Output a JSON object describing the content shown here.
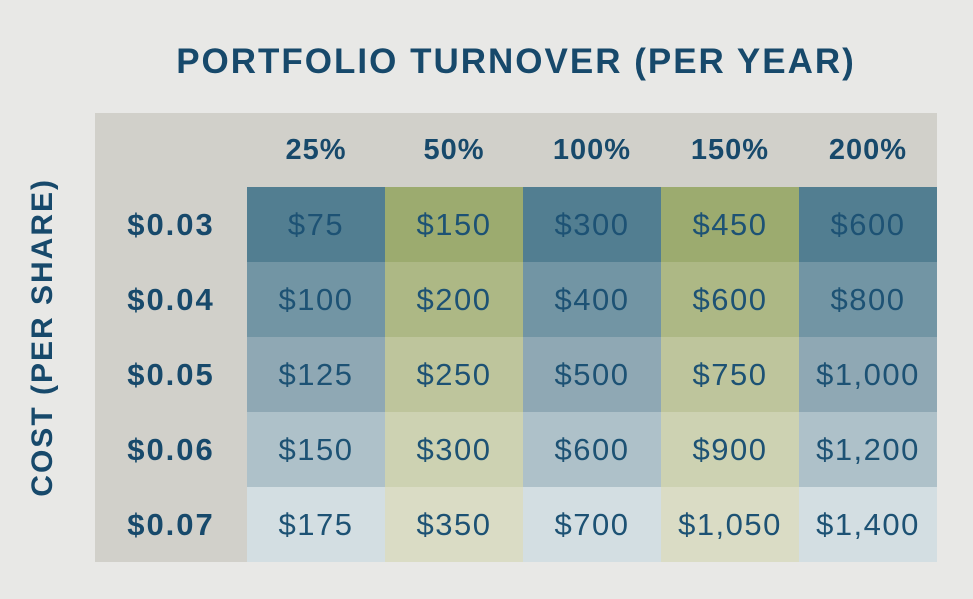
{
  "title": "PORTFOLIO TURNOVER (PER YEAR)",
  "colors": {
    "background": "#e8e8e6",
    "panel": "#d1d0ca",
    "heading_text": "#17496b",
    "cell_text": "#1d5274"
  },
  "chart_data": {
    "type": "heatmap",
    "title": "PORTFOLIO TURNOVER (PER YEAR)",
    "column_axis_label": "PORTFOLIO TURNOVER (PER YEAR)",
    "row_axis_label": "COST (PER SHARE)",
    "columns": [
      "25%",
      "50%",
      "100%",
      "150%",
      "200%"
    ],
    "row_labels": [
      "$0.03",
      "$0.04",
      "$0.05",
      "$0.06",
      "$0.07"
    ],
    "values": [
      [
        75,
        150,
        300,
        450,
        600
      ],
      [
        100,
        200,
        400,
        600,
        800
      ],
      [
        125,
        250,
        500,
        750,
        1000
      ],
      [
        150,
        300,
        600,
        900,
        1200
      ],
      [
        175,
        350,
        700,
        1050,
        1400
      ]
    ],
    "display_values": [
      [
        "$75",
        "$150",
        "$300",
        "$450",
        "$600"
      ],
      [
        "$100",
        "$200",
        "$400",
        "$600",
        "$800"
      ],
      [
        "$125",
        "$250",
        "$500",
        "$750",
        "$1,000"
      ],
      [
        "$150",
        "$300",
        "$600",
        "$900",
        "$1,200"
      ],
      [
        "$175",
        "$350",
        "$700",
        "$1,050",
        "$1,400"
      ]
    ],
    "cell_colors": [
      [
        "#527e91",
        "#9cab6f",
        "#527e91",
        "#9cab6f",
        "#527e91"
      ],
      [
        "#7295a4",
        "#adb885",
        "#7295a4",
        "#adb885",
        "#7295a4"
      ],
      [
        "#8fa8b4",
        "#bec59c",
        "#8fa8b4",
        "#bec59c",
        "#8fa8b4"
      ],
      [
        "#aec1c9",
        "#cdd2b2",
        "#aec1c9",
        "#cdd2b2",
        "#aec1c9"
      ],
      [
        "#d3dee2",
        "#dadcc5",
        "#d3dee2",
        "#dadcc5",
        "#d3dee2"
      ]
    ],
    "legend": "none",
    "grid": false
  }
}
